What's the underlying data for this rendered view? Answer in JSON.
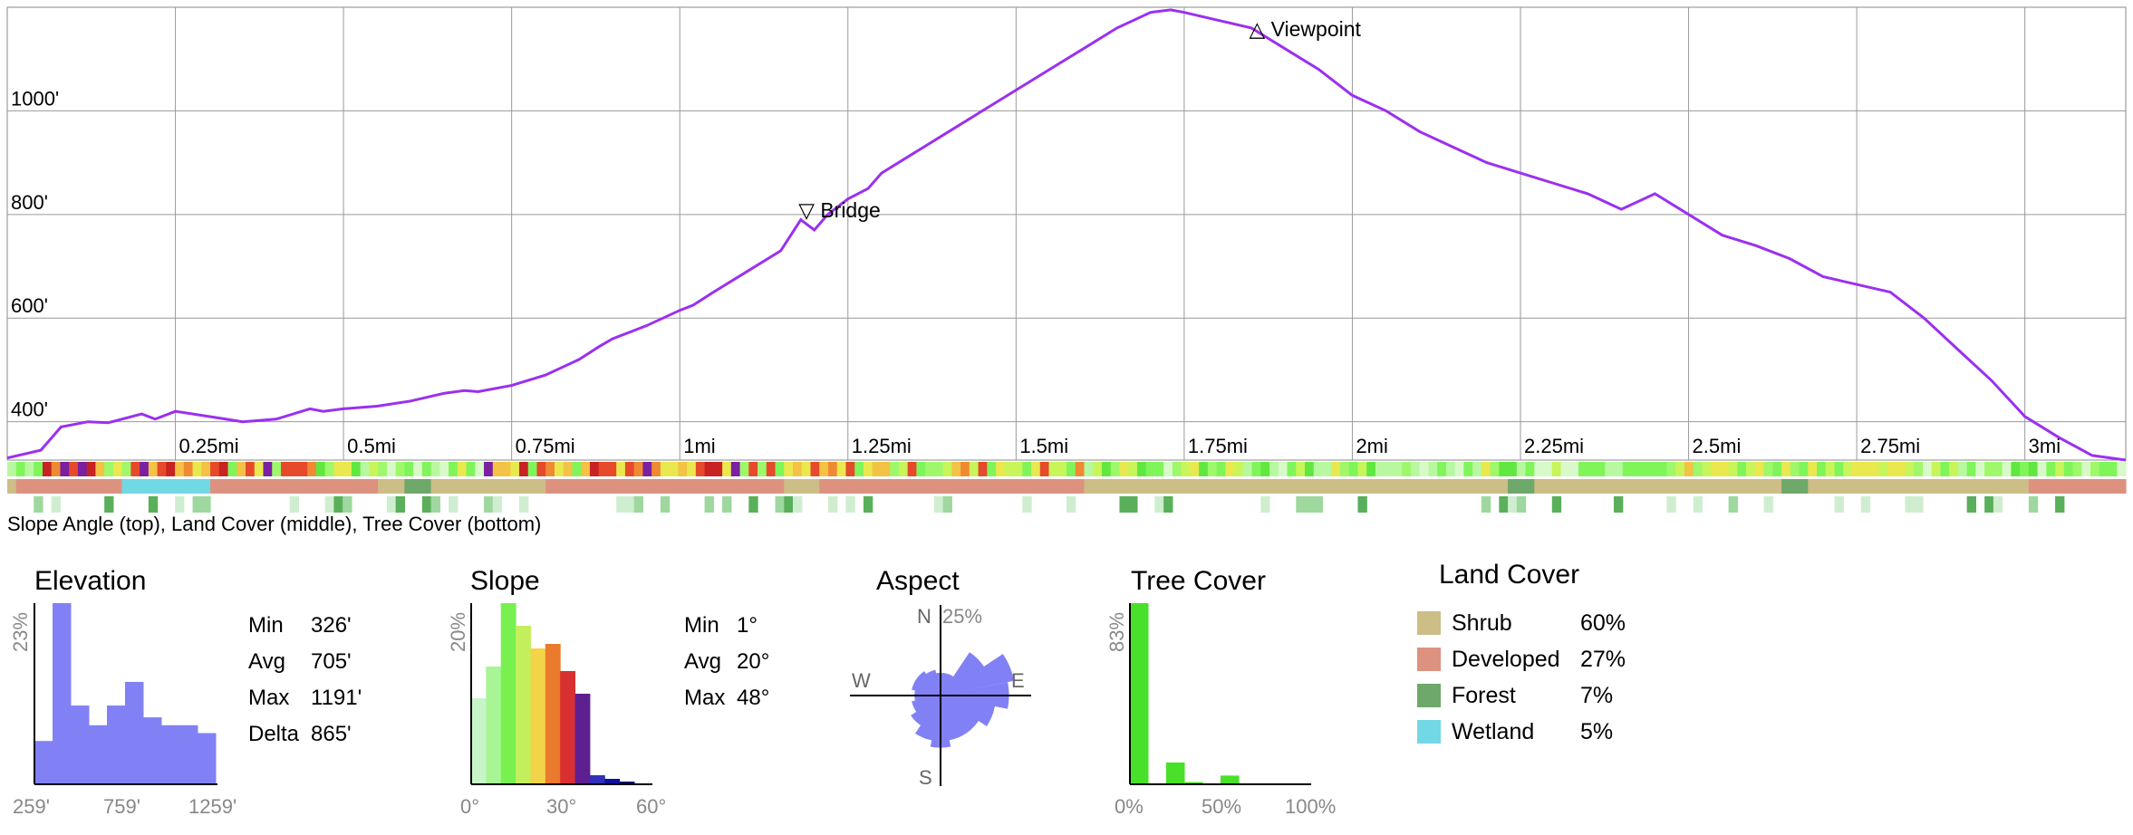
{
  "profile": {
    "y_ticks": [
      {
        "label": "400'",
        "value": 400
      },
      {
        "label": "600'",
        "value": 600
      },
      {
        "label": "800'",
        "value": 800
      },
      {
        "label": "1000'",
        "value": 1000
      }
    ],
    "x_ticks": [
      {
        "label": "0.25mi",
        "value": 0.25
      },
      {
        "label": "0.5mi",
        "value": 0.5
      },
      {
        "label": "0.75mi",
        "value": 0.75
      },
      {
        "label": "1mi",
        "value": 1.0
      },
      {
        "label": "1.25mi",
        "value": 1.25
      },
      {
        "label": "1.5mi",
        "value": 1.5
      },
      {
        "label": "1.75mi",
        "value": 1.75
      },
      {
        "label": "2mi",
        "value": 2.0
      },
      {
        "label": "2.25mi",
        "value": 2.25
      },
      {
        "label": "2.5mi",
        "value": 2.5
      },
      {
        "label": "2.75mi",
        "value": 2.75
      },
      {
        "label": "3mi",
        "value": 3.0
      }
    ],
    "line_color": "#9b30f0",
    "waypoints": [
      {
        "label": "Bridge",
        "symbol": "▽",
        "x": 1.19,
        "y": 810
      },
      {
        "label": "Viewpoint",
        "symbol": "△",
        "x": 1.86,
        "y": 1160
      }
    ],
    "caption": "Slope Angle (top), Land Cover (middle), Tree Cover (bottom)"
  },
  "chart_data": [
    {
      "type": "line",
      "xlim": [
        0,
        3.15
      ],
      "ylim": [
        326,
        1200
      ],
      "xlabel": "",
      "ylabel": "",
      "x": [
        0.0,
        0.05,
        0.08,
        0.12,
        0.15,
        0.2,
        0.22,
        0.25,
        0.3,
        0.35,
        0.4,
        0.45,
        0.47,
        0.5,
        0.55,
        0.6,
        0.65,
        0.68,
        0.7,
        0.75,
        0.8,
        0.85,
        0.88,
        0.9,
        0.95,
        1.0,
        1.02,
        1.05,
        1.1,
        1.15,
        1.18,
        1.2,
        1.22,
        1.25,
        1.28,
        1.3,
        1.35,
        1.4,
        1.45,
        1.5,
        1.55,
        1.6,
        1.65,
        1.7,
        1.73,
        1.75,
        1.8,
        1.85,
        1.9,
        1.95,
        2.0,
        2.05,
        2.1,
        2.15,
        2.2,
        2.25,
        2.3,
        2.35,
        2.4,
        2.45,
        2.5,
        2.55,
        2.6,
        2.65,
        2.7,
        2.75,
        2.8,
        2.85,
        2.9,
        2.95,
        3.0,
        3.05,
        3.1,
        3.15
      ],
      "y": [
        330,
        345,
        390,
        400,
        398,
        415,
        405,
        420,
        410,
        400,
        405,
        425,
        420,
        425,
        430,
        440,
        455,
        460,
        458,
        470,
        490,
        520,
        545,
        560,
        585,
        615,
        625,
        650,
        690,
        730,
        790,
        770,
        800,
        830,
        850,
        880,
        920,
        960,
        1000,
        1040,
        1080,
        1120,
        1160,
        1190,
        1195,
        1190,
        1175,
        1160,
        1120,
        1080,
        1030,
        1000,
        960,
        930,
        900,
        880,
        860,
        840,
        810,
        840,
        800,
        760,
        740,
        715,
        680,
        665,
        650,
        600,
        540,
        480,
        410,
        370,
        335,
        326
      ],
      "waypoints": [
        {
          "name": "Bridge",
          "x": 1.19,
          "y": 810
        },
        {
          "name": "Viewpoint",
          "x": 1.86,
          "y": 1160
        }
      ]
    },
    {
      "type": "bar",
      "title": "Elevation",
      "x_tick_labels": [
        "259'",
        "759'",
        "1259'"
      ],
      "y_max_label": "23%",
      "y_max": 23,
      "values": [
        5.5,
        23,
        10,
        7.5,
        10,
        13,
        8.5,
        7.5,
        7.5,
        6.5
      ],
      "color": "#8181f5",
      "stats": [
        {
          "label": "Min",
          "value": "326'"
        },
        {
          "label": "Avg",
          "value": "705'"
        },
        {
          "label": "Max",
          "value": "1191'"
        },
        {
          "label": "Delta",
          "value": "865'"
        }
      ]
    },
    {
      "type": "bar",
      "title": "Slope",
      "x_tick_labels": [
        "0°",
        "30°",
        "60°"
      ],
      "y_max_label": "20%",
      "y_max": 20,
      "values": [
        9.5,
        13,
        20,
        17.5,
        15,
        15.5,
        12.5,
        10,
        1,
        0.6,
        0.3
      ],
      "colors": [
        "#c8f5c8",
        "#a8f596",
        "#78f050",
        "#c4ef5c",
        "#f2d448",
        "#ea7a2c",
        "#d83030",
        "#5e2090",
        "#3030b8",
        "#1010a0",
        "#101060"
      ],
      "stats": [
        {
          "label": "Min",
          "value": "1°"
        },
        {
          "label": "Avg",
          "value": "20°"
        },
        {
          "label": "Max",
          "value": "48°"
        }
      ]
    },
    {
      "type": "pie",
      "title": "Aspect",
      "directions": [
        "N",
        "E",
        "S",
        "W"
      ],
      "max_label": "25%",
      "max_value": 25,
      "values": [
        7,
        7,
        16,
        23,
        21,
        17,
        14,
        14,
        16,
        14,
        11,
        9,
        8,
        9,
        9,
        8
      ],
      "color": "#8181f5"
    },
    {
      "type": "bar",
      "title": "Tree Cover",
      "x_tick_labels": [
        "0%",
        "50%",
        "100%"
      ],
      "y_max_label": "83%",
      "y_max": 83,
      "values": [
        83,
        0,
        10,
        1,
        0,
        4,
        0,
        0,
        0,
        0
      ],
      "color": "#48e028"
    },
    {
      "type": "table",
      "title": "Land Cover",
      "rows": [
        {
          "name": "Shrub",
          "value": "60%",
          "color": "#cdbd86"
        },
        {
          "name": "Developed",
          "value": "27%",
          "color": "#dd9280"
        },
        {
          "name": "Forest",
          "value": "7%",
          "color": "#6ea86a"
        },
        {
          "name": "Wetland",
          "value": "5%",
          "color": "#72d8e6"
        }
      ]
    }
  ]
}
